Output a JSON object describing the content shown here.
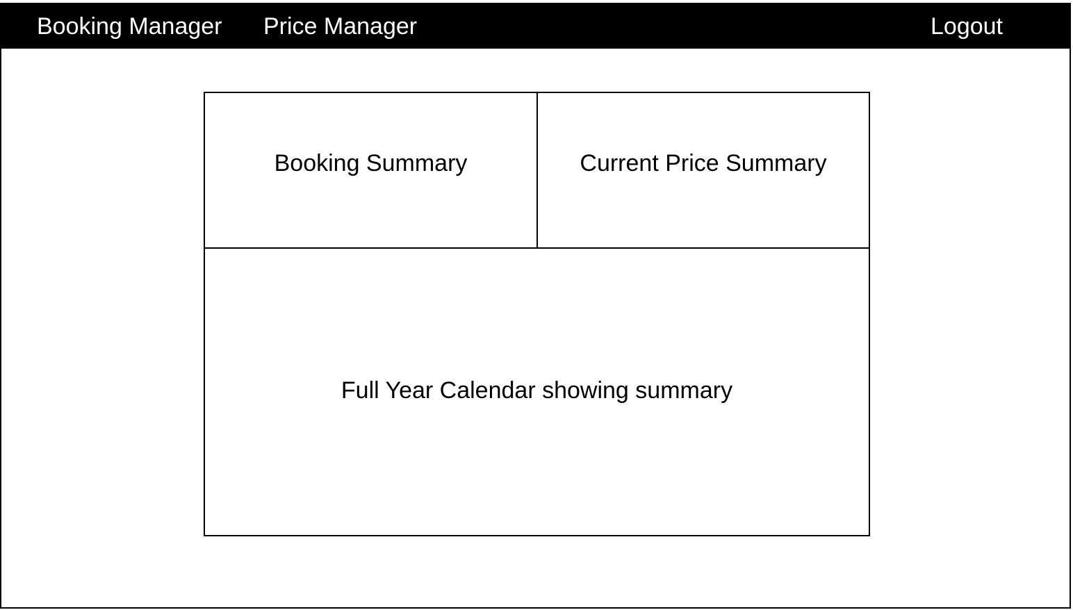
{
  "nav": {
    "booking_manager": "Booking Manager",
    "price_manager": "Price Manager",
    "logout": "Logout"
  },
  "panels": {
    "booking_summary": "Booking Summary",
    "current_price_summary": "Current Price Summary",
    "calendar_summary": "Full Year Calendar showing summary"
  },
  "colors": {
    "navbar_background": "#000000",
    "navbar_text": "#ffffff",
    "page_background": "#ffffff",
    "border": "#000000"
  }
}
